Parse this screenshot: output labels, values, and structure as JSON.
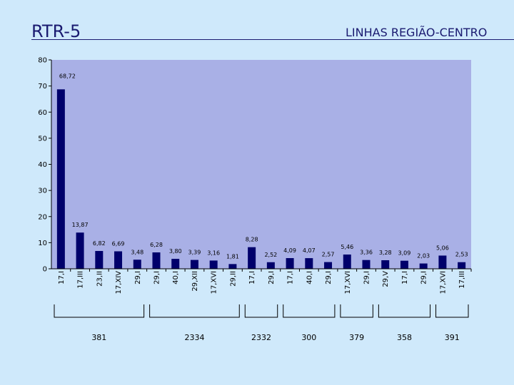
{
  "header": {
    "title": "RTR-5",
    "subtitle": "LINHAS REGIÃO-CENTRO"
  },
  "chart_data": {
    "type": "bar",
    "title": "RTR-5",
    "subtitle": "LINHAS REGIÃO-CENTRO",
    "ylim": [
      0,
      80
    ],
    "yticks": [
      0,
      10,
      20,
      30,
      40,
      50,
      60,
      70,
      80
    ],
    "grid": false,
    "bar_color": "#00006b",
    "plot_background": "#a9b0e6",
    "categories": [
      "17,I",
      "17,III",
      "23,II",
      "17,XIV",
      "29,I",
      "29,I",
      "40,I",
      "29,XII",
      "17,XVI",
      "29,II",
      "17,I",
      "29,I",
      "17,I",
      "40,I",
      "29,I",
      "17,XVI",
      "29,I",
      "29,V",
      "17,I",
      "29,I",
      "17,XVI",
      "17,III"
    ],
    "values": [
      68.72,
      13.87,
      6.82,
      6.69,
      3.48,
      6.28,
      3.8,
      3.39,
      3.16,
      1.81,
      8.28,
      2.52,
      4.09,
      4.07,
      2.57,
      5.46,
      3.36,
      3.28,
      3.09,
      2.03,
      5.06,
      2.53
    ],
    "value_labels": [
      "68,72",
      "13,87",
      "6,82",
      "6,69",
      "3,48",
      "6,28",
      "3,80",
      "3,39",
      "3,16",
      "1,81",
      "8,28",
      "2,52",
      "4,09",
      "4,07",
      "2,57",
      "5,46",
      "3,36",
      "3,28",
      "3,09",
      "2,03",
      "5,06",
      "2,53"
    ],
    "groups": [
      {
        "label": "381",
        "from": 0,
        "to": 4
      },
      {
        "label": "2334",
        "from": 5,
        "to": 9
      },
      {
        "label": "2332",
        "from": 10,
        "to": 11
      },
      {
        "label": "300",
        "from": 12,
        "to": 14
      },
      {
        "label": "379",
        "from": 15,
        "to": 16
      },
      {
        "label": "358",
        "from": 17,
        "to": 19
      },
      {
        "label": "391",
        "from": 20,
        "to": 21
      }
    ]
  }
}
